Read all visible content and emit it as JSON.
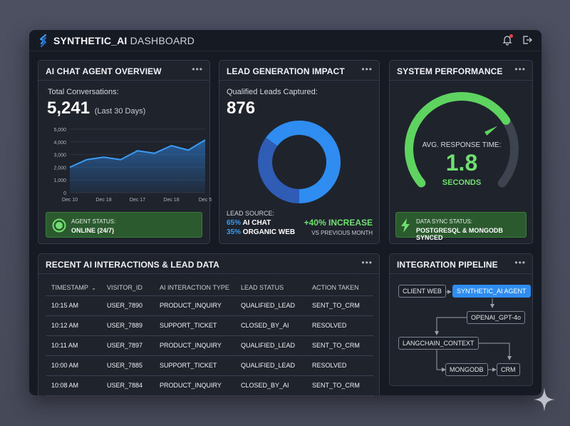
{
  "app": {
    "title_bold": "SYNTHETIC_AI",
    "title_rest": "DASHBOARD",
    "logo_icon": "s-logo-icon",
    "header_icons": [
      "bell-icon",
      "logout-icon"
    ],
    "notification_dot": true
  },
  "chat_overview": {
    "title": "AI CHAT AGENT OVERVIEW",
    "menu": "•••",
    "total_label": "Total Conversations:",
    "total_value": "5,241",
    "period": "(Last 30 Days)",
    "agent_status_label": "AGENT STATUS:",
    "agent_status_value": "ONLINE (24/7)"
  },
  "lead_gen": {
    "title": "LEAD GENERATION IMPACT",
    "menu": "•••",
    "qualified_label": "Qualified Leads Captured:",
    "qualified_value": "876",
    "source_label": "LEAD SOURCE:",
    "source_ai_pct": "65%",
    "source_ai_label": "AI CHAT",
    "source_web_pct": "35%",
    "source_web_label": "ORGANIC WEB",
    "increase": "+40% INCREASE",
    "vs_label": "VS PREVIOUS MONTH"
  },
  "performance": {
    "title": "SYSTEM PERFORMANCE",
    "menu": "•••",
    "gauge_label": "AVG. RESPONSE TIME:",
    "gauge_value": "1.8",
    "gauge_unit": "SECONDS",
    "gauge_fraction": 0.72,
    "sync_label": "DATA SYNC STATUS:",
    "sync_value": "POSTGRESQL & MONGODB SYNCED"
  },
  "interactions": {
    "title": "RECENT AI INTERACTIONS & LEAD DATA",
    "menu": "•••",
    "columns": [
      "TIMESTAMP",
      "VISITOR_ID",
      "AI INTERACTION TYPE",
      "LEAD STATUS",
      "ACTION TAKEN"
    ],
    "rows": [
      [
        "10:15 AM",
        "USER_7890",
        "PRODUCT_INQUIRY",
        "QUALIFIED_LEAD",
        "SENT_TO_CRM"
      ],
      [
        "10:12 AM",
        "USER_7889",
        "SUPPORT_TICKET",
        "CLOSED_BY_AI",
        "RESOLVED"
      ],
      [
        "10:11 AM",
        "USER_7897",
        "PRODUCT_INQUIRY",
        "QUALIFIED_LEAD",
        "SENT_TO_CRM"
      ],
      [
        "10:00 AM",
        "USER_7885",
        "SUPPORT_TICKET",
        "QUALIFIED_LEAD",
        "RESOLVED"
      ],
      [
        "10:08 AM",
        "USER_7884",
        "PRODUCT_INQUIRY",
        "CLOSED_BY_AI",
        "SENT_TO_CRM"
      ]
    ]
  },
  "pipeline": {
    "title": "INTEGRATION PIPELINE",
    "menu": "•••",
    "nodes": {
      "client_web": "CLIENT WEB",
      "agent": "SYNTHETIC_AI AGENT",
      "openai": "OPENAI_GPT-4o",
      "langchain": "LANGCHAIN_CONTEXT",
      "mongodb": "MONGODB",
      "crm": "CRM"
    }
  },
  "colors": {
    "accent_blue": "#2f8cf0",
    "donut_dark": "#2f5db5",
    "success_green": "#5fd35f",
    "status_bg": "#2b5a2e"
  },
  "chart_data": {
    "type": "area",
    "title": "",
    "xlabel": "",
    "ylabel": "",
    "categories": [
      "Dec 10",
      "Dec 18",
      "Dec 17",
      "Dec 18",
      "Dec 5"
    ],
    "y_ticks": [
      "5,000",
      "4,000",
      "3,000",
      "2,000",
      "1,000",
      "0"
    ],
    "ylim": [
      0,
      5000
    ],
    "x": [
      0,
      0.5,
      1,
      1.5,
      2,
      2.5,
      3,
      3.5,
      4
    ],
    "values": [
      2000,
      2600,
      2800,
      2600,
      3300,
      3100,
      3700,
      3350,
      4150
    ],
    "grid": true
  },
  "donut_data": {
    "type": "pie",
    "slices": [
      {
        "name": "AI CHAT",
        "value": 65
      },
      {
        "name": "ORGANIC WEB",
        "value": 35
      }
    ]
  }
}
